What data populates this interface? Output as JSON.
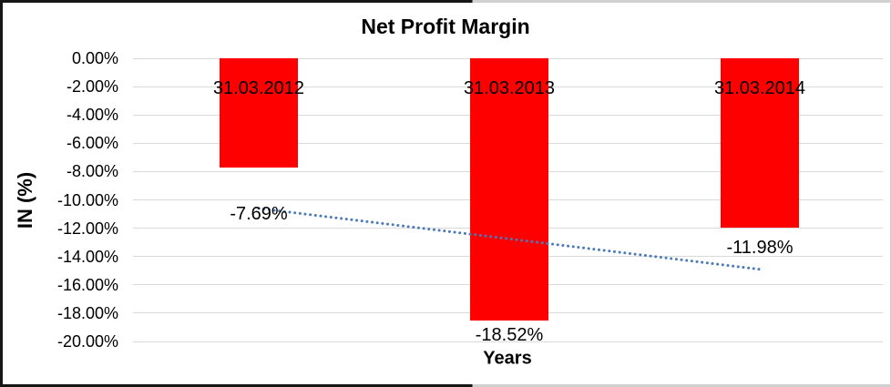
{
  "chart_data": {
    "type": "bar",
    "title": "Net Profit Margin",
    "xlabel": "Years",
    "ylabel": "IN (%)",
    "categories": [
      "31.03.2012",
      "31.03.2013",
      "31.03.2014"
    ],
    "values": [
      -7.69,
      -18.52,
      -11.98
    ],
    "data_labels": [
      "-7.69%",
      "-18.52%",
      "-11.98%"
    ],
    "bar_color": "#ff0000",
    "gridline_color": "#d9d9d9",
    "text_color": "#000000",
    "ylim": [
      -20,
      0
    ],
    "grid": true,
    "legend": "none",
    "y_ticks": [
      {
        "value": 0,
        "label": "0.00%"
      },
      {
        "value": -2,
        "label": "-2.00%"
      },
      {
        "value": -4,
        "label": "-4.00%"
      },
      {
        "value": -6,
        "label": "-6.00%"
      },
      {
        "value": -8,
        "label": "-8.00%"
      },
      {
        "value": -10,
        "label": "-10.00%"
      },
      {
        "value": -12,
        "label": "-12.00%"
      },
      {
        "value": -14,
        "label": "-14.00%"
      },
      {
        "value": -16,
        "label": "-16.00%"
      },
      {
        "value": -18,
        "label": "-18.00%"
      },
      {
        "value": -20,
        "label": "-20.00%"
      }
    ],
    "trendline": {
      "type": "linear",
      "style": "dotted",
      "color": "#4a7ab8",
      "start_value": -10.6,
      "end_value": -14.9
    }
  }
}
